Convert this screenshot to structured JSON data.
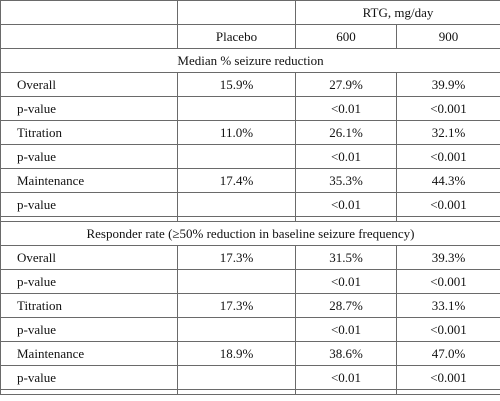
{
  "header": {
    "group_label": "RTG, mg/day",
    "placebo_label": "Placebo",
    "dose_600": "600",
    "dose_900": "900"
  },
  "sections": [
    {
      "title": "Median % seizure reduction",
      "rows": [
        {
          "label": "Overall",
          "placebo": "15.9%",
          "d600": "27.9%",
          "d900": "39.9%"
        },
        {
          "label": "p-value",
          "placebo": "",
          "d600": "<0.01",
          "d900": "<0.001"
        },
        {
          "label": "Titration",
          "placebo": "11.0%",
          "d600": "26.1%",
          "d900": "32.1%"
        },
        {
          "label": "p-value",
          "placebo": "",
          "d600": "<0.01",
          "d900": "<0.001"
        },
        {
          "label": "Maintenance",
          "placebo": "17.4%",
          "d600": "35.3%",
          "d900": "44.3%"
        },
        {
          "label": "p-value",
          "placebo": "",
          "d600": "<0.01",
          "d900": "<0.001"
        }
      ]
    },
    {
      "title": "Responder rate (≥50% reduction in baseline seizure frequency)",
      "rows": [
        {
          "label": "Overall",
          "placebo": "17.3%",
          "d600": "31.5%",
          "d900": "39.3%"
        },
        {
          "label": "p-value",
          "placebo": "",
          "d600": "<0.01",
          "d900": "<0.001"
        },
        {
          "label": "Titration",
          "placebo": "17.3%",
          "d600": "28.7%",
          "d900": "33.1%"
        },
        {
          "label": "p-value",
          "placebo": "",
          "d600": "<0.01",
          "d900": "<0.001"
        },
        {
          "label": "Maintenance",
          "placebo": "18.9%",
          "d600": "38.6%",
          "d900": "47.0%"
        },
        {
          "label": "p-value",
          "placebo": "",
          "d600": "<0.01",
          "d900": "<0.001"
        }
      ]
    }
  ]
}
